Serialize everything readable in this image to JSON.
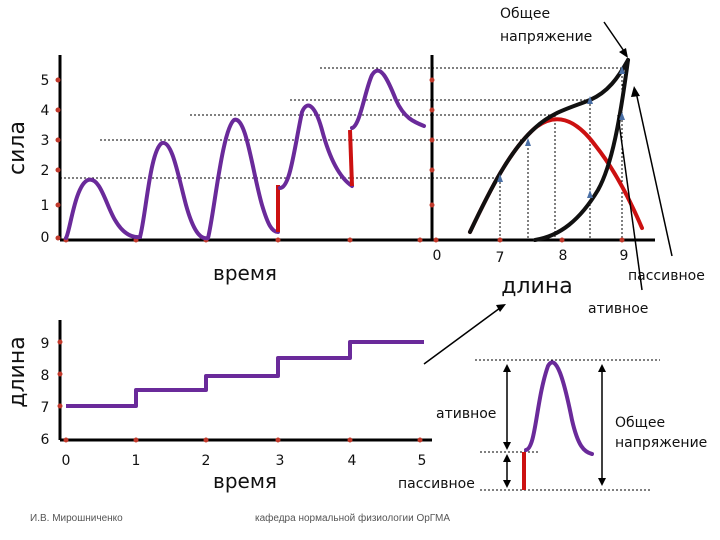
{
  "labels": {
    "y_force": "сила",
    "x_time_top": "время",
    "x_length_right": "длина",
    "y_length_bottom": "длина",
    "x_time_bottom": "время",
    "total_tension_top": [
      "Общее",
      "напряжение"
    ],
    "passive_right": "пассивное",
    "active_right": "ативное",
    "active_box": "ативное",
    "passive_box": "пассивное",
    "total_tension_box": [
      "Общее",
      "напряжение"
    ],
    "author": "И.В. Мирошниченко",
    "department": "кафедра нормальной физиологии ОрГМА"
  },
  "ticks": {
    "force_y": [
      "0",
      "1",
      "2",
      "3",
      "4",
      "5"
    ],
    "length_x": [
      "0",
      "7",
      "8",
      "9"
    ],
    "length_y": [
      "6",
      "7",
      "8",
      "9"
    ],
    "time_x": [
      "0",
      "1",
      "2",
      "3",
      "4",
      "5"
    ]
  },
  "colors": {
    "axis": "#000000",
    "trace": "#6a2a9a",
    "red": "#cc1111",
    "tick_dot": "#c0392b",
    "arrow_tip": "#4a6fa5"
  }
}
